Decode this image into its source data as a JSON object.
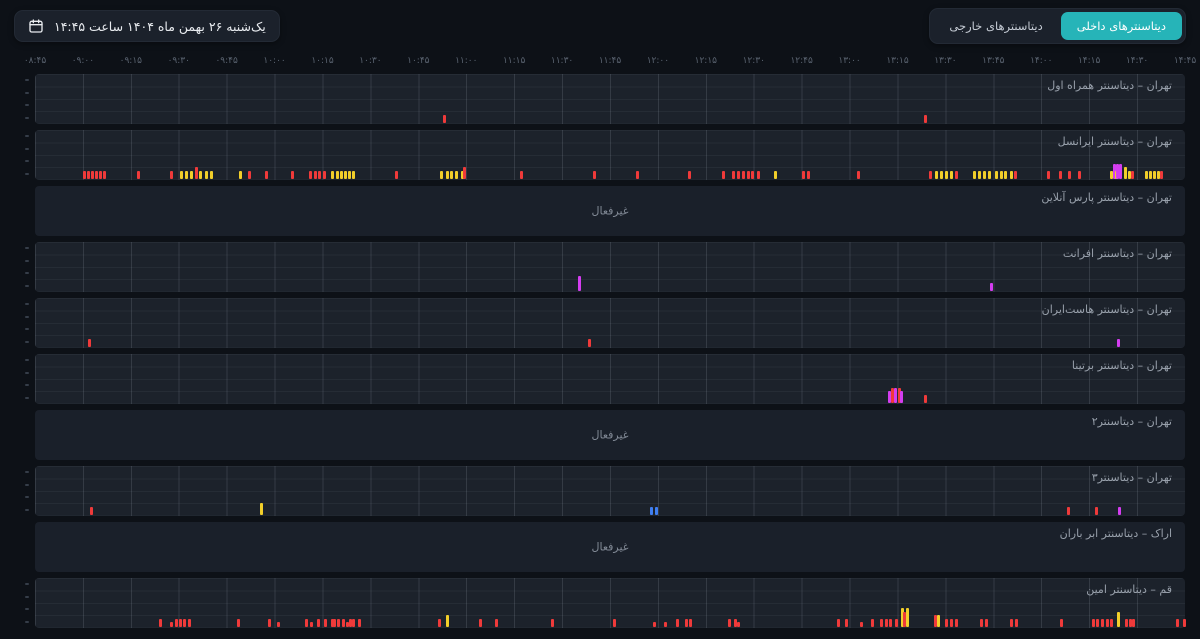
{
  "header": {
    "date_button": {
      "label": "یک‌شنبه ۲۶ بهمن ماه ۱۴۰۴ ساعت ۱۴:۴۵"
    },
    "tabs": [
      {
        "label": "دیتاسنترهای داخلی",
        "active": true
      },
      {
        "label": "دیتاسنترهای خارجی",
        "active": false
      }
    ]
  },
  "colors": {
    "accent": "#26b4b8",
    "r": "#ef3a3a",
    "y": "#f2cf2a",
    "m": "#d43df0",
    "b": "#3f7ff2"
  },
  "inactive_label": "غیرفعال",
  "axis": {
    "ticks": [
      "۰۸:۴۵",
      "۰۹:۰۰",
      "۰۹:۱۵",
      "۰۹:۳۰",
      "۰۹:۴۵",
      "۱۰:۰۰",
      "۱۰:۱۵",
      "۱۰:۳۰",
      "۱۰:۴۵",
      "۱۱:۰۰",
      "۱۱:۱۵",
      "۱۱:۳۰",
      "۱۱:۴۵",
      "۱۲:۰۰",
      "۱۲:۱۵",
      "۱۲:۳۰",
      "۱۲:۴۵",
      "۱۳:۰۰",
      "۱۳:۱۵",
      "۱۳:۳۰",
      "۱۳:۴۵",
      "۱۴:۰۰",
      "۱۴:۱۵",
      "۱۴:۳۰",
      "۱۴:۴۵"
    ]
  },
  "rows": [
    {
      "label": "تهران – دیتاسنتر همراه اول",
      "active": true,
      "events": [
        [
          35.5,
          "r",
          2
        ],
        [
          77.3,
          "r",
          2
        ]
      ]
    },
    {
      "label": "تهران – دیتاسنتر ایرانسل",
      "active": true,
      "events": [
        [
          4.2,
          "r",
          2
        ],
        [
          4.5,
          "r",
          2
        ],
        [
          4.9,
          "r",
          2
        ],
        [
          5.2,
          "r",
          2
        ],
        [
          5.6,
          "r",
          2
        ],
        [
          5.9,
          "r",
          2
        ],
        [
          8.9,
          "r",
          2
        ],
        [
          11.7,
          "r",
          2
        ],
        [
          12.6,
          "y",
          2
        ],
        [
          13.0,
          "y",
          2
        ],
        [
          13.5,
          "y",
          2
        ],
        [
          13.9,
          "r",
          3
        ],
        [
          14.3,
          "y",
          2
        ],
        [
          14.8,
          "y",
          2
        ],
        [
          15.2,
          "y",
          2
        ],
        [
          17.7,
          "y",
          2
        ],
        [
          18.5,
          "r",
          2
        ],
        [
          20.0,
          "r",
          2
        ],
        [
          22.3,
          "r",
          2
        ],
        [
          23.8,
          "r",
          2
        ],
        [
          24.3,
          "r",
          2
        ],
        [
          24.6,
          "r",
          2
        ],
        [
          25.0,
          "r",
          2
        ],
        [
          25.7,
          "y",
          2
        ],
        [
          26.2,
          "y",
          2
        ],
        [
          26.5,
          "y",
          2
        ],
        [
          26.9,
          "y",
          2
        ],
        [
          27.2,
          "y",
          2
        ],
        [
          27.6,
          "y",
          2
        ],
        [
          31.3,
          "r",
          2
        ],
        [
          35.2,
          "y",
          2
        ],
        [
          35.7,
          "y",
          2
        ],
        [
          36.1,
          "y",
          2
        ],
        [
          36.5,
          "y",
          2
        ],
        [
          37.0,
          "y",
          2
        ],
        [
          37.2,
          "r",
          3
        ],
        [
          42.2,
          "r",
          2
        ],
        [
          48.5,
          "r",
          2
        ],
        [
          52.3,
          "r",
          2
        ],
        [
          56.8,
          "r",
          2
        ],
        [
          59.7,
          "r",
          2
        ],
        [
          60.6,
          "r",
          2
        ],
        [
          61.0,
          "r",
          2
        ],
        [
          61.5,
          "r",
          2
        ],
        [
          61.9,
          "r",
          2
        ],
        [
          62.3,
          "r",
          2
        ],
        [
          62.8,
          "r",
          2
        ],
        [
          64.3,
          "y",
          2
        ],
        [
          66.7,
          "r",
          2
        ],
        [
          67.1,
          "r",
          2
        ],
        [
          71.5,
          "r",
          2
        ],
        [
          77.7,
          "r",
          2
        ],
        [
          78.3,
          "y",
          2
        ],
        [
          78.7,
          "y",
          2
        ],
        [
          79.1,
          "y",
          2
        ],
        [
          79.6,
          "y",
          2
        ],
        [
          80.0,
          "r",
          2
        ],
        [
          81.6,
          "y",
          2
        ],
        [
          82.0,
          "y",
          2
        ],
        [
          82.4,
          "y",
          2
        ],
        [
          82.9,
          "y",
          2
        ],
        [
          83.5,
          "y",
          2
        ],
        [
          83.9,
          "y",
          2
        ],
        [
          84.3,
          "y",
          2
        ],
        [
          84.8,
          "y",
          2
        ],
        [
          85.1,
          "r",
          2
        ],
        [
          88.0,
          "r",
          2
        ],
        [
          89.0,
          "r",
          2
        ],
        [
          89.8,
          "r",
          2
        ],
        [
          90.7,
          "r",
          2
        ],
        [
          93.5,
          "y",
          2
        ],
        [
          93.7,
          "m",
          4
        ],
        [
          93.9,
          "y",
          2
        ],
        [
          94.0,
          "m",
          4
        ],
        [
          94.3,
          "m",
          4
        ],
        [
          94.7,
          "y",
          3
        ],
        [
          95.0,
          "y",
          2
        ],
        [
          95.3,
          "r",
          2
        ],
        [
          96.5,
          "y",
          2
        ],
        [
          96.9,
          "y",
          2
        ],
        [
          97.2,
          "y",
          2
        ],
        [
          97.6,
          "y",
          2
        ],
        [
          97.8,
          "r",
          2
        ]
      ]
    },
    {
      "label": "تهران – دیتاسنتر پارس آنلاین",
      "active": false,
      "events": []
    },
    {
      "label": "تهران – دیتاسنتر افرانت",
      "active": true,
      "events": [
        [
          47.2,
          "m",
          4
        ],
        [
          83.0,
          "m",
          2
        ]
      ]
    },
    {
      "label": "تهران – دیتاسنتر هاست‌ایران",
      "active": true,
      "events": [
        [
          4.6,
          "r",
          2
        ],
        [
          48.1,
          "r",
          2
        ],
        [
          94.1,
          "m",
          2
        ]
      ]
    },
    {
      "label": "تهران – دیتاسنتر برتینا",
      "active": true,
      "events": [
        [
          74.2,
          "m",
          3
        ],
        [
          74.4,
          "r",
          4
        ],
        [
          74.7,
          "m",
          4
        ],
        [
          75.0,
          "r",
          4
        ],
        [
          75.2,
          "m",
          3
        ],
        [
          77.3,
          "r",
          2
        ]
      ]
    },
    {
      "label": "تهران – دیتاسنتر۲",
      "active": false,
      "events": []
    },
    {
      "label": "تهران – دیتاسنتر۳",
      "active": true,
      "events": [
        [
          4.8,
          "r",
          2
        ],
        [
          19.6,
          "y",
          3
        ],
        [
          53.5,
          "b",
          2
        ],
        [
          53.9,
          "b",
          2
        ],
        [
          89.7,
          "r",
          2
        ],
        [
          92.2,
          "r",
          2
        ],
        [
          94.2,
          "m",
          2
        ]
      ]
    },
    {
      "label": "اراک – دیتاسنتر ابر باران",
      "active": false,
      "events": []
    },
    {
      "label": "قم – دیتاسنتر امین",
      "active": true,
      "events": [
        [
          10.8,
          "r",
          2
        ],
        [
          11.7,
          "r",
          1
        ],
        [
          12.2,
          "r",
          2
        ],
        [
          12.5,
          "r",
          2
        ],
        [
          12.9,
          "r",
          2
        ],
        [
          13.3,
          "r",
          2
        ],
        [
          17.6,
          "r",
          2
        ],
        [
          20.3,
          "r",
          2
        ],
        [
          21.0,
          "r",
          1
        ],
        [
          23.5,
          "r",
          2
        ],
        [
          23.9,
          "r",
          1
        ],
        [
          24.5,
          "r",
          2
        ],
        [
          25.1,
          "r",
          2
        ],
        [
          25.7,
          "r",
          2
        ],
        [
          25.9,
          "r",
          2
        ],
        [
          26.3,
          "r",
          2
        ],
        [
          26.7,
          "r",
          2
        ],
        [
          27.0,
          "r",
          1
        ],
        [
          27.3,
          "r",
          2
        ],
        [
          27.6,
          "r",
          2
        ],
        [
          28.1,
          "r",
          2
        ],
        [
          35.0,
          "r",
          2
        ],
        [
          35.7,
          "y",
          3
        ],
        [
          38.6,
          "r",
          2
        ],
        [
          40.0,
          "r",
          2
        ],
        [
          44.9,
          "r",
          2
        ],
        [
          50.3,
          "r",
          2
        ],
        [
          53.7,
          "r",
          1
        ],
        [
          54.7,
          "r",
          1
        ],
        [
          55.7,
          "r",
          2
        ],
        [
          56.5,
          "r",
          2
        ],
        [
          56.9,
          "r",
          2
        ],
        [
          60.3,
          "r",
          2
        ],
        [
          60.8,
          "r",
          2
        ],
        [
          61.0,
          "r",
          1
        ],
        [
          69.7,
          "r",
          2
        ],
        [
          70.4,
          "r",
          2
        ],
        [
          71.7,
          "r",
          1
        ],
        [
          72.7,
          "r",
          2
        ],
        [
          73.5,
          "r",
          2
        ],
        [
          73.9,
          "r",
          2
        ],
        [
          74.3,
          "r",
          2
        ],
        [
          74.8,
          "r",
          2
        ],
        [
          75.3,
          "y",
          5
        ],
        [
          75.5,
          "r",
          4
        ],
        [
          75.7,
          "y",
          5
        ],
        [
          78.2,
          "r",
          3
        ],
        [
          78.4,
          "y",
          3
        ],
        [
          79.1,
          "r",
          2
        ],
        [
          79.6,
          "r",
          2
        ],
        [
          80.0,
          "r",
          2
        ],
        [
          82.2,
          "r",
          2
        ],
        [
          82.6,
          "r",
          2
        ],
        [
          84.8,
          "r",
          2
        ],
        [
          85.2,
          "r",
          2
        ],
        [
          89.1,
          "r",
          2
        ],
        [
          91.9,
          "r",
          2
        ],
        [
          92.3,
          "r",
          2
        ],
        [
          92.7,
          "r",
          2
        ],
        [
          93.1,
          "r",
          2
        ],
        [
          93.5,
          "r",
          2
        ],
        [
          94.1,
          "y",
          4
        ],
        [
          94.8,
          "r",
          2
        ],
        [
          95.1,
          "r",
          2
        ],
        [
          95.4,
          "r",
          2
        ],
        [
          99.2,
          "r",
          2
        ],
        [
          99.8,
          "r",
          2
        ]
      ]
    }
  ]
}
